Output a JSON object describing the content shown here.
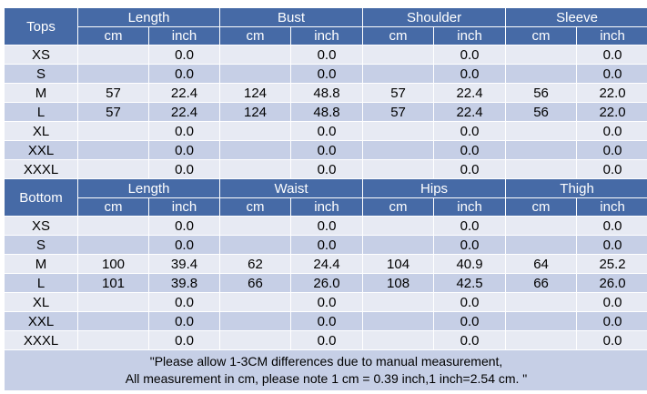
{
  "sections": [
    {
      "label": "Tops",
      "groups": [
        "Length",
        "Bust",
        "Shoulder",
        "Sleeve"
      ],
      "units": [
        "cm",
        "inch",
        "cm",
        "inch",
        "cm",
        "inch",
        "cm",
        "inch"
      ],
      "rows": [
        [
          "XS",
          "",
          "0.0",
          "",
          "0.0",
          "",
          "0.0",
          "",
          "0.0"
        ],
        [
          "S",
          "",
          "0.0",
          "",
          "0.0",
          "",
          "0.0",
          "",
          "0.0"
        ],
        [
          "M",
          "57",
          "22.4",
          "124",
          "48.8",
          "57",
          "22.4",
          "56",
          "22.0"
        ],
        [
          "L",
          "57",
          "22.4",
          "124",
          "48.8",
          "57",
          "22.4",
          "56",
          "22.0"
        ],
        [
          "XL",
          "",
          "0.0",
          "",
          "0.0",
          "",
          "0.0",
          "",
          "0.0"
        ],
        [
          "XXL",
          "",
          "0.0",
          "",
          "0.0",
          "",
          "0.0",
          "",
          "0.0"
        ],
        [
          "XXXL",
          "",
          "0.0",
          "",
          "0.0",
          "",
          "0.0",
          "",
          "0.0"
        ]
      ]
    },
    {
      "label": "Bottom",
      "groups": [
        "Length",
        "Waist",
        "Hips",
        "Thigh"
      ],
      "units": [
        "cm",
        "inch",
        "cm",
        "inch",
        "cm",
        "inch",
        "cm",
        "inch"
      ],
      "rows": [
        [
          "XS",
          "",
          "0.0",
          "",
          "0.0",
          "",
          "0.0",
          "",
          "0.0"
        ],
        [
          "S",
          "",
          "0.0",
          "",
          "0.0",
          "",
          "0.0",
          "",
          "0.0"
        ],
        [
          "M",
          "100",
          "39.4",
          "62",
          "24.4",
          "104",
          "40.9",
          "64",
          "25.2"
        ],
        [
          "L",
          "101",
          "39.8",
          "66",
          "26.0",
          "108",
          "42.5",
          "66",
          "26.0"
        ],
        [
          "XL",
          "",
          "0.0",
          "",
          "0.0",
          "",
          "0.0",
          "",
          "0.0"
        ],
        [
          "XXL",
          "",
          "0.0",
          "",
          "0.0",
          "",
          "0.0",
          "",
          "0.0"
        ],
        [
          "XXXL",
          "",
          "0.0",
          "",
          "0.0",
          "",
          "0.0",
          "",
          "0.0"
        ]
      ]
    }
  ],
  "note": {
    "line1": "\"Please allow 1-3CM differences due to manual measurement,",
    "line2": "All measurement in cm, please note 1 cm = 0.39 inch,1 inch=2.54 cm. \""
  },
  "colors": {
    "header": "#466aa6",
    "row_light": "#e7eaf3",
    "row_dark": "#c6cfe6"
  }
}
